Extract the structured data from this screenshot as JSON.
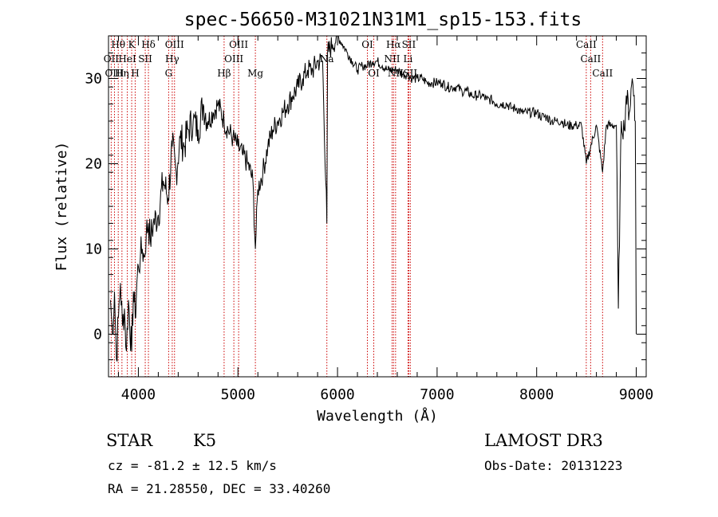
{
  "chart_data": {
    "type": "line",
    "title": "spec-56650-M31021N31M1_sp15-153.fits",
    "xlabel": "Wavelength (Å)",
    "ylabel": "Flux (relative)",
    "xlim": [
      3700,
      9100
    ],
    "ylim": [
      -5,
      35
    ],
    "xticks": [
      4000,
      5000,
      6000,
      7000,
      8000,
      9000
    ],
    "yticks": [
      0,
      10,
      20,
      30
    ],
    "x_minor_step": 200,
    "y_minor_step": 2,
    "spectrum": {
      "x": [
        3720,
        3740,
        3760,
        3780,
        3800,
        3820,
        3840,
        3860,
        3880,
        3900,
        3933,
        3950,
        3968,
        3990,
        4000,
        4020,
        4040,
        4060,
        4080,
        4101,
        4120,
        4150,
        4200,
        4250,
        4300,
        4340,
        4380,
        4420,
        4460,
        4500,
        4550,
        4600,
        4650,
        4700,
        4750,
        4800,
        4861,
        4900,
        4950,
        5000,
        5050,
        5100,
        5150,
        5175,
        5200,
        5250,
        5300,
        5350,
        5400,
        5450,
        5500,
        5550,
        5600,
        5650,
        5700,
        5750,
        5800,
        5850,
        5893,
        5900,
        5950,
        6000,
        6050,
        6100,
        6150,
        6200,
        6250,
        6300,
        6350,
        6400,
        6450,
        6500,
        6563,
        6600,
        6650,
        6700,
        6750,
        6800,
        6850,
        6900,
        6950,
        7000,
        7050,
        7100,
        7150,
        7200,
        7250,
        7300,
        7350,
        7400,
        7450,
        7500,
        7550,
        7600,
        7650,
        7700,
        7750,
        7800,
        7850,
        7900,
        7950,
        8000,
        8050,
        8100,
        8150,
        8200,
        8250,
        8300,
        8350,
        8400,
        8450,
        8498,
        8542,
        8600,
        8662,
        8700,
        8750,
        8800,
        8820,
        8850,
        8880,
        8900,
        8930,
        8960,
        8980,
        8990,
        9000
      ],
      "y": [
        4,
        0,
        5,
        -3,
        2,
        6,
        1,
        3,
        -2,
        4,
        -2,
        5,
        2,
        7,
        8,
        9,
        10,
        9,
        12,
        13,
        11,
        13,
        14,
        18,
        16,
        22,
        19,
        23,
        22,
        24,
        25,
        24,
        27,
        25,
        26,
        27,
        25,
        24,
        23,
        22,
        21,
        20,
        18,
        10,
        17,
        19,
        22,
        24,
        25,
        26,
        27,
        28,
        29,
        30,
        31,
        31,
        32,
        32,
        13,
        33,
        34,
        35,
        34,
        33,
        32,
        31,
        31.5,
        31.5,
        32,
        32,
        31.5,
        31,
        31,
        31,
        30.5,
        30.5,
        30,
        30,
        30,
        29.5,
        29.5,
        29.5,
        29.5,
        29,
        29,
        29,
        28.5,
        28.5,
        28,
        28,
        28,
        27.5,
        27.5,
        27,
        27,
        27,
        26.5,
        26.5,
        26,
        26,
        26,
        26,
        25.5,
        25.5,
        25,
        25,
        25,
        24.5,
        24.5,
        24.5,
        24.5,
        20,
        22,
        24.5,
        19,
        24.5,
        24.5,
        24.5,
        3,
        25,
        24,
        28,
        26,
        30,
        28,
        25,
        0
      ]
    },
    "lines": [
      {
        "label": "Hθ",
        "wave": 3798,
        "row": 1
      },
      {
        "label": "OII",
        "wave": 3727,
        "row": 2
      },
      {
        "label": "OIII",
        "wave": 3760,
        "row": 3
      },
      {
        "label": "K",
        "wave": 3933,
        "row": 1
      },
      {
        "label": "HeI",
        "wave": 3889,
        "row": 2
      },
      {
        "label": "Hη",
        "wave": 3835,
        "row": 3
      },
      {
        "label": "H",
        "wave": 3968,
        "row": 3
      },
      {
        "label": "Hδ",
        "wave": 4101,
        "row": 1
      },
      {
        "label": "SII",
        "wave": 4069,
        "row": 2
      },
      {
        "label": "OIII",
        "wave": 4363,
        "row": 1
      },
      {
        "label": "Hγ",
        "wave": 4340,
        "row": 2
      },
      {
        "label": "G",
        "wave": 4304,
        "row": 3
      },
      {
        "label": "OIII",
        "wave": 5007,
        "row": 1
      },
      {
        "label": "OIII",
        "wave": 4959,
        "row": 2
      },
      {
        "label": "Hβ",
        "wave": 4861,
        "row": 3
      },
      {
        "label": "Mg",
        "wave": 5175,
        "row": 3
      },
      {
        "label": "Na",
        "wave": 5893,
        "row": 2
      },
      {
        "label": "OI",
        "wave": 6300,
        "row": 1
      },
      {
        "label": "OI",
        "wave": 6364,
        "row": 3
      },
      {
        "label": "Hα",
        "wave": 6563,
        "row": 1
      },
      {
        "label": "SII",
        "wave": 6716,
        "row": 1
      },
      {
        "label": "NII",
        "wave": 6548,
        "row": 2
      },
      {
        "label": "Li",
        "wave": 6708,
        "row": 2
      },
      {
        "label": "NII",
        "wave": 6583,
        "row": 3
      },
      {
        "label": "SII",
        "wave": 6731,
        "row": 3
      },
      {
        "label": "CaII",
        "wave": 8498,
        "row": 1
      },
      {
        "label": "CaII",
        "wave": 8542,
        "row": 2
      },
      {
        "label": "CaII",
        "wave": 8662,
        "row": 3
      }
    ]
  },
  "info": {
    "object_class": "STAR",
    "subclass": "K5",
    "survey": "LAMOST DR3",
    "redshift": "cz = -81.2 ± 12.5 km/s",
    "obs_date": "Obs-Date: 20131223",
    "coords": "RA =  21.28550, DEC =  33.40260"
  },
  "colors": {
    "line_marker": "#cc0000",
    "spectrum": "#000000",
    "axes": "#000000"
  }
}
